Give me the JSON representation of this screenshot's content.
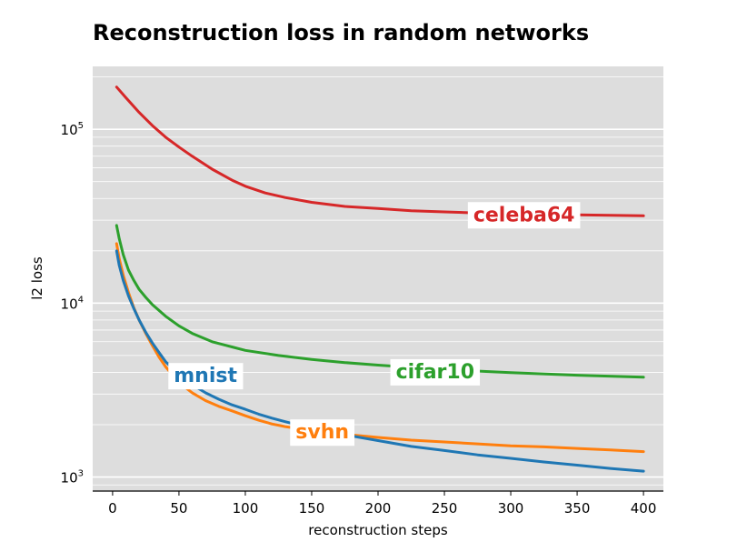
{
  "chart_data": {
    "type": "line",
    "title": "Reconstruction loss in random networks",
    "xlabel": "reconstruction steps",
    "ylabel": "l2 loss",
    "xlim": [
      -15,
      415
    ],
    "ylim": [
      830,
      230000
    ],
    "yscale": "log",
    "xticks": [
      0,
      50,
      100,
      150,
      200,
      250,
      300,
      350,
      400
    ],
    "xtick_labels": [
      "0",
      "50",
      "100",
      "150",
      "200",
      "250",
      "300",
      "350",
      "400"
    ],
    "yticks": [
      1000,
      10000,
      100000
    ],
    "ytick_labels": [
      {
        "base": "10",
        "exp": "3"
      },
      {
        "base": "10",
        "exp": "4"
      },
      {
        "base": "10",
        "exp": "5"
      }
    ],
    "grid": true,
    "legend": "inline labels",
    "series": [
      {
        "name": "celeba64",
        "color": "#d62728",
        "x": [
          3,
          10,
          20,
          30,
          40,
          50,
          60,
          75,
          90,
          100,
          115,
          130,
          150,
          175,
          200,
          225,
          250,
          275,
          300,
          325,
          350,
          375,
          400
        ],
        "y": [
          175000,
          152000,
          125000,
          105000,
          90000,
          79000,
          70000,
          59000,
          51000,
          47000,
          43000,
          40500,
          38000,
          36000,
          35000,
          34000,
          33500,
          33000,
          32700,
          32400,
          32200,
          32000,
          31800
        ],
        "label": {
          "text": "celeba64",
          "x": 310,
          "y": 32000
        }
      },
      {
        "name": "cifar10",
        "color": "#2ca02c",
        "x": [
          3,
          5,
          8,
          12,
          16,
          20,
          25,
          30,
          40,
          50,
          60,
          75,
          90,
          100,
          125,
          150,
          175,
          200,
          250,
          300,
          350,
          400
        ],
        "y": [
          28000,
          23500,
          19000,
          15500,
          13500,
          12000,
          10800,
          9800,
          8400,
          7400,
          6700,
          6000,
          5600,
          5350,
          5000,
          4750,
          4550,
          4400,
          4150,
          3980,
          3850,
          3750
        ],
        "label": {
          "text": "cifar10",
          "x": 243,
          "y": 4000
        }
      },
      {
        "name": "svhn",
        "color": "#ff7f0e",
        "x": [
          3,
          5,
          8,
          12,
          16,
          20,
          25,
          30,
          35,
          40,
          50,
          60,
          70,
          80,
          90,
          100,
          110,
          120,
          130,
          150,
          175,
          200,
          225,
          250,
          275,
          300,
          325,
          350,
          375,
          400
        ],
        "y": [
          22000,
          18000,
          14500,
          11500,
          9400,
          8000,
          6700,
          5700,
          4900,
          4300,
          3500,
          3050,
          2750,
          2550,
          2400,
          2250,
          2120,
          2020,
          1950,
          1850,
          1760,
          1690,
          1630,
          1590,
          1550,
          1510,
          1490,
          1460,
          1430,
          1400
        ],
        "label": {
          "text": "svhn",
          "x": 158,
          "y": 1800
        }
      },
      {
        "name": "mnist",
        "color": "#1f77b4",
        "x": [
          3,
          5,
          8,
          12,
          16,
          20,
          25,
          30,
          35,
          40,
          50,
          60,
          70,
          80,
          90,
          100,
          110,
          120,
          130,
          150,
          175,
          200,
          225,
          250,
          275,
          300,
          325,
          350,
          375,
          400
        ],
        "y": [
          20000,
          16500,
          13500,
          11000,
          9300,
          8000,
          6800,
          5900,
          5200,
          4600,
          3900,
          3400,
          3050,
          2800,
          2600,
          2450,
          2300,
          2180,
          2080,
          1900,
          1750,
          1620,
          1500,
          1420,
          1340,
          1280,
          1220,
          1170,
          1120,
          1080
        ],
        "label": {
          "text": "mnist",
          "x": 70,
          "y": 3800
        }
      }
    ]
  }
}
